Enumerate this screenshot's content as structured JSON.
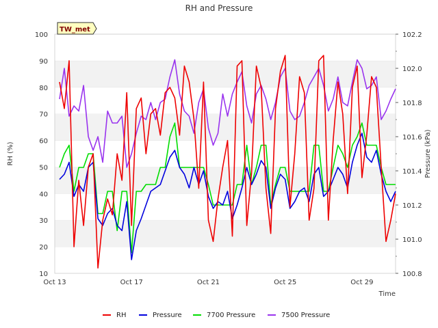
{
  "chart_data": {
    "type": "line",
    "title": "RH and Pressure",
    "badge": "TW_met",
    "xlabel": "Time",
    "ylabel": "RH (%)",
    "y2label": "Pressure (kPa)",
    "xlim": [
      "2023-10-13",
      "2023-10-30T18:00"
    ],
    "ylim": [
      10,
      100
    ],
    "y2lim": [
      100.8,
      102.2
    ],
    "x_ticks": [
      "Oct 13",
      "Oct 17",
      "Oct 21",
      "Oct 25",
      "Oct 29"
    ],
    "x_tick_dates": [
      "2023-10-13",
      "2023-10-17",
      "2023-10-21",
      "2023-10-25",
      "2023-10-29"
    ],
    "y_ticks": [
      10,
      20,
      30,
      40,
      50,
      60,
      70,
      80,
      90,
      100
    ],
    "y2_ticks": [
      100.8,
      101.0,
      101.2,
      101.4,
      101.6,
      101.8,
      102.0,
      102.2
    ],
    "grid": "horizontal bands",
    "legend_position": "bottom",
    "series": [
      {
        "name": "RH",
        "axis": "left",
        "color": "#ee0000",
        "x": [
          "2023-10-13T06:00",
          "2023-10-13T12:00",
          "2023-10-13T18:00",
          "2023-10-14T00:00",
          "2023-10-14T06:00",
          "2023-10-14T12:00",
          "2023-10-14T18:00",
          "2023-10-15T00:00",
          "2023-10-15T06:00",
          "2023-10-15T12:00",
          "2023-10-15T18:00",
          "2023-10-16T00:00",
          "2023-10-16T06:00",
          "2023-10-16T12:00",
          "2023-10-16T18:00",
          "2023-10-17T00:00",
          "2023-10-17T06:00",
          "2023-10-17T12:00",
          "2023-10-17T18:00",
          "2023-10-18T00:00",
          "2023-10-18T06:00",
          "2023-10-18T12:00",
          "2023-10-18T18:00",
          "2023-10-19T00:00",
          "2023-10-19T06:00",
          "2023-10-19T12:00",
          "2023-10-19T18:00",
          "2023-10-20T00:00",
          "2023-10-20T06:00",
          "2023-10-20T12:00",
          "2023-10-20T18:00",
          "2023-10-21T00:00",
          "2023-10-21T06:00",
          "2023-10-21T12:00",
          "2023-10-21T18:00",
          "2023-10-22T00:00",
          "2023-10-22T06:00",
          "2023-10-22T12:00",
          "2023-10-22T18:00",
          "2023-10-23T00:00",
          "2023-10-23T06:00",
          "2023-10-23T12:00",
          "2023-10-23T18:00",
          "2023-10-24T00:00",
          "2023-10-24T06:00",
          "2023-10-24T12:00",
          "2023-10-24T18:00",
          "2023-10-25T00:00",
          "2023-10-25T06:00",
          "2023-10-25T12:00",
          "2023-10-25T18:00",
          "2023-10-26T00:00",
          "2023-10-26T06:00",
          "2023-10-26T12:00",
          "2023-10-26T18:00",
          "2023-10-27T00:00",
          "2023-10-27T06:00",
          "2023-10-27T12:00",
          "2023-10-27T18:00",
          "2023-10-28T00:00",
          "2023-10-28T06:00",
          "2023-10-28T12:00",
          "2023-10-28T18:00",
          "2023-10-29T00:00",
          "2023-10-29T06:00",
          "2023-10-29T12:00",
          "2023-10-29T18:00",
          "2023-10-30T00:00",
          "2023-10-30T06:00",
          "2023-10-30T12:00",
          "2023-10-30T18:00"
        ],
        "values": [
          82,
          72,
          90,
          20,
          45,
          28,
          50,
          55,
          12,
          30,
          38,
          32,
          55,
          45,
          78,
          28,
          72,
          76,
          55,
          70,
          72,
          62,
          78,
          80,
          76,
          62,
          88,
          82,
          68,
          42,
          82,
          30,
          22,
          38,
          50,
          60,
          24,
          88,
          90,
          28,
          48,
          88,
          80,
          42,
          25,
          72,
          86,
          92,
          35,
          55,
          84,
          78,
          30,
          42,
          90,
          92,
          30,
          60,
          82,
          70,
          40,
          80,
          88,
          46,
          62,
          84,
          80,
          50,
          22,
          30,
          40
        ]
      },
      {
        "name": "Pressure",
        "axis": "right",
        "color": "#0000dd",
        "x": [
          "2023-10-13T06:00",
          "2023-10-13T12:00",
          "2023-10-13T18:00",
          "2023-10-14T00:00",
          "2023-10-14T06:00",
          "2023-10-14T12:00",
          "2023-10-14T18:00",
          "2023-10-15T00:00",
          "2023-10-15T06:00",
          "2023-10-15T12:00",
          "2023-10-15T18:00",
          "2023-10-16T00:00",
          "2023-10-16T06:00",
          "2023-10-16T12:00",
          "2023-10-16T18:00",
          "2023-10-17T00:00",
          "2023-10-17T06:00",
          "2023-10-17T12:00",
          "2023-10-17T18:00",
          "2023-10-18T00:00",
          "2023-10-18T06:00",
          "2023-10-18T12:00",
          "2023-10-18T18:00",
          "2023-10-19T00:00",
          "2023-10-19T06:00",
          "2023-10-19T12:00",
          "2023-10-19T18:00",
          "2023-10-20T00:00",
          "2023-10-20T06:00",
          "2023-10-20T12:00",
          "2023-10-20T18:00",
          "2023-10-21T00:00",
          "2023-10-21T06:00",
          "2023-10-21T12:00",
          "2023-10-21T18:00",
          "2023-10-22T00:00",
          "2023-10-22T06:00",
          "2023-10-22T12:00",
          "2023-10-22T18:00",
          "2023-10-23T00:00",
          "2023-10-23T06:00",
          "2023-10-23T12:00",
          "2023-10-23T18:00",
          "2023-10-24T00:00",
          "2023-10-24T06:00",
          "2023-10-24T12:00",
          "2023-10-24T18:00",
          "2023-10-25T00:00",
          "2023-10-25T06:00",
          "2023-10-25T12:00",
          "2023-10-25T18:00",
          "2023-10-26T00:00",
          "2023-10-26T06:00",
          "2023-10-26T12:00",
          "2023-10-26T18:00",
          "2023-10-27T00:00",
          "2023-10-27T06:00",
          "2023-10-27T12:00",
          "2023-10-27T18:00",
          "2023-10-28T00:00",
          "2023-10-28T06:00",
          "2023-10-28T12:00",
          "2023-10-28T18:00",
          "2023-10-29T00:00",
          "2023-10-29T06:00",
          "2023-10-29T12:00",
          "2023-10-29T18:00",
          "2023-10-30T00:00",
          "2023-10-30T06:00",
          "2023-10-30T12:00",
          "2023-10-30T18:00"
        ],
        "values": [
          101.35,
          101.38,
          101.45,
          101.25,
          101.32,
          101.28,
          101.42,
          101.45,
          101.12,
          101.08,
          101.15,
          101.18,
          101.08,
          101.05,
          101.22,
          100.88,
          101.05,
          101.12,
          101.2,
          101.28,
          101.3,
          101.32,
          101.4,
          101.48,
          101.52,
          101.42,
          101.38,
          101.3,
          101.42,
          101.32,
          101.4,
          101.25,
          101.18,
          101.22,
          101.2,
          101.28,
          101.12,
          101.2,
          101.3,
          101.42,
          101.32,
          101.38,
          101.46,
          101.42,
          101.18,
          101.3,
          101.38,
          101.35,
          101.18,
          101.22,
          101.28,
          101.3,
          101.22,
          101.38,
          101.42,
          101.25,
          101.28,
          101.35,
          101.42,
          101.38,
          101.3,
          101.45,
          101.55,
          101.62,
          101.48,
          101.45,
          101.52,
          101.38,
          101.28,
          101.22,
          101.28
        ]
      },
      {
        "name": "7700 Pressure",
        "axis": "right",
        "color": "#00dd00",
        "x": [
          "2023-10-13T06:00",
          "2023-10-13T12:00",
          "2023-10-13T18:00",
          "2023-10-14T00:00",
          "2023-10-14T06:00",
          "2023-10-14T12:00",
          "2023-10-14T18:00",
          "2023-10-15T00:00",
          "2023-10-15T06:00",
          "2023-10-15T12:00",
          "2023-10-15T18:00",
          "2023-10-16T00:00",
          "2023-10-16T06:00",
          "2023-10-16T12:00",
          "2023-10-16T18:00",
          "2023-10-17T00:00",
          "2023-10-17T06:00",
          "2023-10-17T12:00",
          "2023-10-17T18:00",
          "2023-10-18T00:00",
          "2023-10-18T06:00",
          "2023-10-18T12:00",
          "2023-10-18T18:00",
          "2023-10-19T00:00",
          "2023-10-19T06:00",
          "2023-10-19T12:00",
          "2023-10-19T18:00",
          "2023-10-20T00:00",
          "2023-10-20T06:00",
          "2023-10-20T12:00",
          "2023-10-20T18:00",
          "2023-10-21T00:00",
          "2023-10-21T06:00",
          "2023-10-21T12:00",
          "2023-10-21T18:00",
          "2023-10-22T00:00",
          "2023-10-22T06:00",
          "2023-10-22T12:00",
          "2023-10-22T18:00",
          "2023-10-23T00:00",
          "2023-10-23T06:00",
          "2023-10-23T12:00",
          "2023-10-23T18:00",
          "2023-10-24T00:00",
          "2023-10-24T06:00",
          "2023-10-24T12:00",
          "2023-10-24T18:00",
          "2023-10-25T00:00",
          "2023-10-25T06:00",
          "2023-10-25T12:00",
          "2023-10-25T18:00",
          "2023-10-26T00:00",
          "2023-10-26T06:00",
          "2023-10-26T12:00",
          "2023-10-26T18:00",
          "2023-10-27T00:00",
          "2023-10-27T06:00",
          "2023-10-27T12:00",
          "2023-10-27T18:00",
          "2023-10-28T00:00",
          "2023-10-28T06:00",
          "2023-10-28T12:00",
          "2023-10-28T18:00",
          "2023-10-29T00:00",
          "2023-10-29T06:00",
          "2023-10-29T12:00",
          "2023-10-29T18:00",
          "2023-10-30T00:00",
          "2023-10-30T06:00",
          "2023-10-30T12:00",
          "2023-10-30T18:00"
        ],
        "values": [
          101.42,
          101.5,
          101.55,
          101.28,
          101.42,
          101.42,
          101.5,
          101.5,
          101.15,
          101.15,
          101.28,
          101.28,
          101.05,
          101.28,
          101.28,
          100.92,
          101.28,
          101.28,
          101.32,
          101.32,
          101.32,
          101.42,
          101.42,
          101.6,
          101.68,
          101.42,
          101.42,
          101.42,
          101.42,
          101.42,
          101.42,
          101.32,
          101.2,
          101.2,
          101.2,
          101.2,
          101.2,
          101.32,
          101.32,
          101.55,
          101.32,
          101.42,
          101.55,
          101.55,
          101.2,
          101.32,
          101.42,
          101.42,
          101.28,
          101.28,
          101.28,
          101.28,
          101.28,
          101.55,
          101.55,
          101.28,
          101.28,
          101.42,
          101.55,
          101.5,
          101.42,
          101.55,
          101.6,
          101.68,
          101.55,
          101.55,
          101.55,
          101.42,
          101.32,
          101.32,
          101.32
        ]
      },
      {
        "name": "7500 Pressure",
        "axis": "right",
        "color": "#9933ee",
        "x": [
          "2023-10-13T06:00",
          "2023-10-13T12:00",
          "2023-10-13T18:00",
          "2023-10-14T00:00",
          "2023-10-14T06:00",
          "2023-10-14T12:00",
          "2023-10-14T18:00",
          "2023-10-15T00:00",
          "2023-10-15T06:00",
          "2023-10-15T12:00",
          "2023-10-15T18:00",
          "2023-10-16T00:00",
          "2023-10-16T06:00",
          "2023-10-16T12:00",
          "2023-10-16T18:00",
          "2023-10-17T00:00",
          "2023-10-17T06:00",
          "2023-10-17T12:00",
          "2023-10-17T18:00",
          "2023-10-18T00:00",
          "2023-10-18T06:00",
          "2023-10-18T12:00",
          "2023-10-18T18:00",
          "2023-10-19T00:00",
          "2023-10-19T06:00",
          "2023-10-19T12:00",
          "2023-10-19T18:00",
          "2023-10-20T00:00",
          "2023-10-20T06:00",
          "2023-10-20T12:00",
          "2023-10-20T18:00",
          "2023-10-21T00:00",
          "2023-10-21T06:00",
          "2023-10-21T12:00",
          "2023-10-21T18:00",
          "2023-10-22T00:00",
          "2023-10-22T06:00",
          "2023-10-22T12:00",
          "2023-10-22T18:00",
          "2023-10-23T00:00",
          "2023-10-23T06:00",
          "2023-10-23T12:00",
          "2023-10-23T18:00",
          "2023-10-24T00:00",
          "2023-10-24T06:00",
          "2023-10-24T12:00",
          "2023-10-24T18:00",
          "2023-10-25T00:00",
          "2023-10-25T06:00",
          "2023-10-25T12:00",
          "2023-10-25T18:00",
          "2023-10-26T00:00",
          "2023-10-26T06:00",
          "2023-10-26T12:00",
          "2023-10-26T18:00",
          "2023-10-27T00:00",
          "2023-10-27T06:00",
          "2023-10-27T12:00",
          "2023-10-27T18:00",
          "2023-10-28T00:00",
          "2023-10-28T06:00",
          "2023-10-28T12:00",
          "2023-10-28T18:00",
          "2023-10-29T00:00",
          "2023-10-29T06:00",
          "2023-10-29T12:00",
          "2023-10-29T18:00",
          "2023-10-30T00:00",
          "2023-10-30T06:00",
          "2023-10-30T12:00",
          "2023-10-30T18:00"
        ],
        "values": [
          101.82,
          102.0,
          101.72,
          101.78,
          101.75,
          101.9,
          101.6,
          101.52,
          101.6,
          101.45,
          101.75,
          101.68,
          101.68,
          101.72,
          101.42,
          101.5,
          101.62,
          101.72,
          101.7,
          101.8,
          101.7,
          101.8,
          101.82,
          101.95,
          102.05,
          101.85,
          101.75,
          101.72,
          101.62,
          101.8,
          101.88,
          101.65,
          101.55,
          101.62,
          101.85,
          101.72,
          101.85,
          101.92,
          101.98,
          101.78,
          101.68,
          101.85,
          101.9,
          101.82,
          101.7,
          101.8,
          101.95,
          102.0,
          101.75,
          101.7,
          101.72,
          101.8,
          101.9,
          101.95,
          102.0,
          101.9,
          101.75,
          101.82,
          101.95,
          101.8,
          101.78,
          101.92,
          102.05,
          102.0,
          101.88,
          101.9,
          101.95,
          101.7,
          101.75,
          101.82,
          101.88
        ]
      }
    ]
  }
}
